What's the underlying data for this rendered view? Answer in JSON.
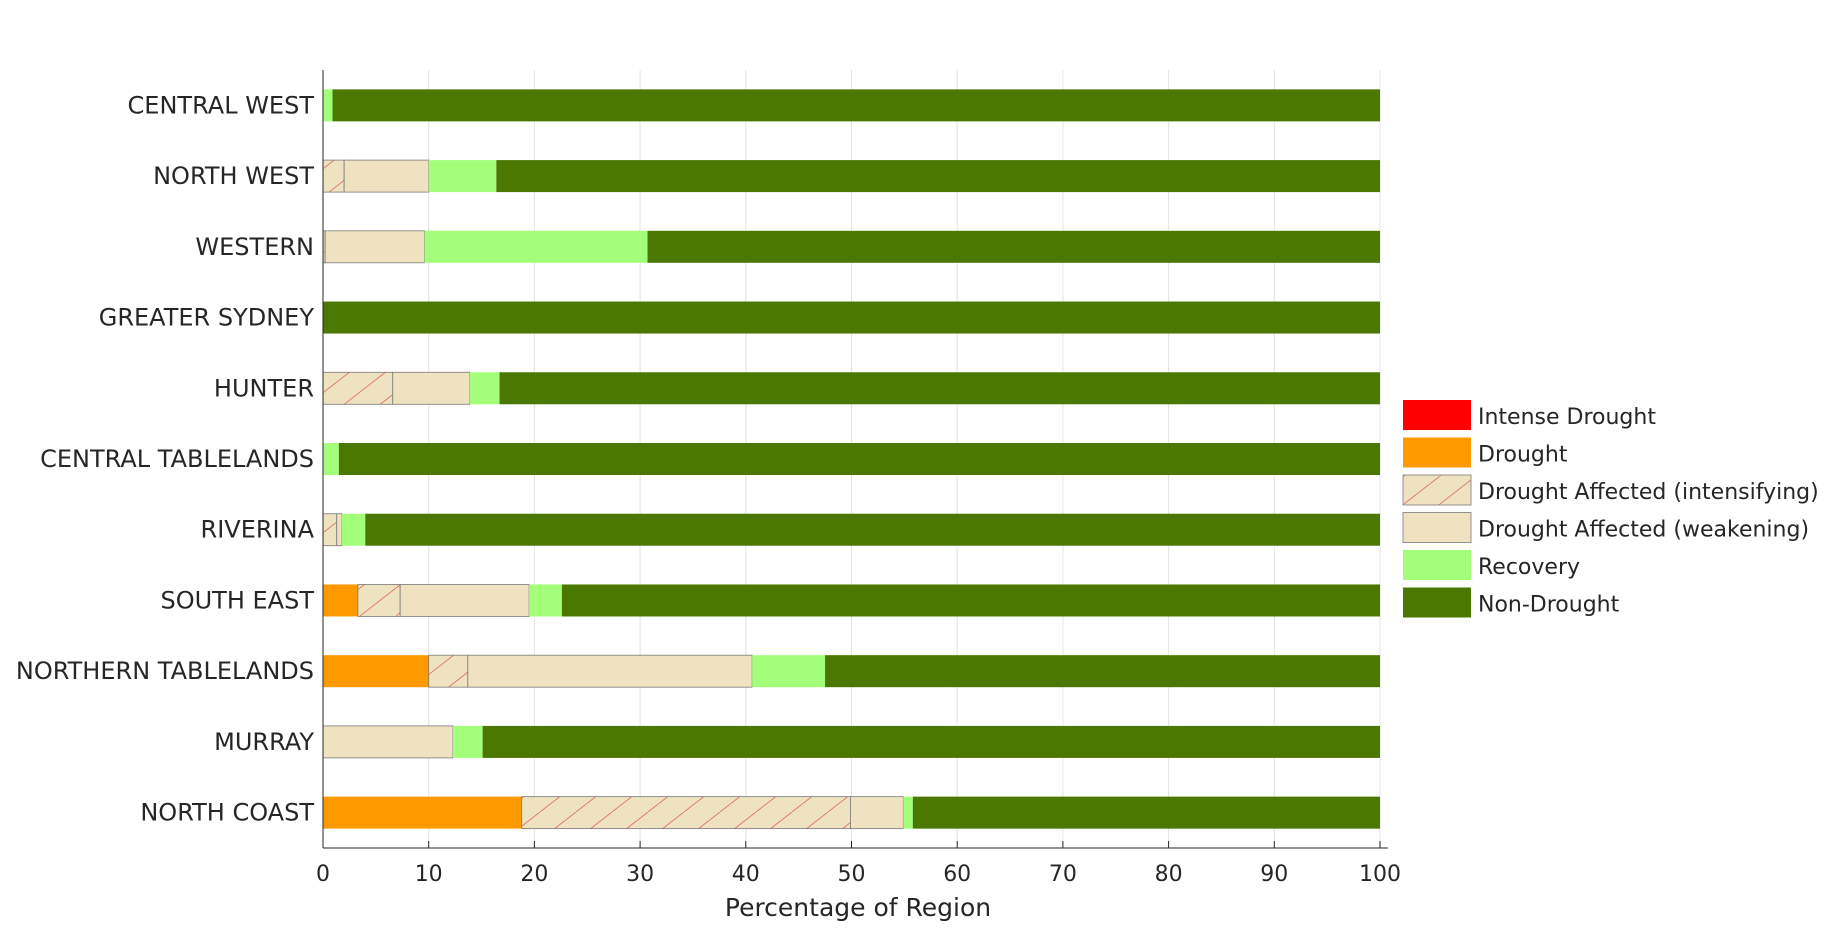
{
  "chart_data": {
    "type": "bar",
    "orientation": "horizontal",
    "stacked": true,
    "title": "",
    "xlabel": "Percentage of Region",
    "ylabel": "",
    "xlim": [
      0,
      100
    ],
    "xticks": [
      0,
      10,
      20,
      30,
      40,
      50,
      60,
      70,
      80,
      90,
      100
    ],
    "grid": true,
    "legend_position": "right",
    "categories": [
      "CENTRAL WEST",
      "NORTH WEST",
      "WESTERN",
      "GREATER SYDNEY",
      "HUNTER",
      "CENTRAL TABLELANDS",
      "RIVERINA",
      "SOUTH EAST",
      "NORTHERN TABLELANDS",
      "MURRAY",
      "NORTH COAST"
    ],
    "series": [
      {
        "name": "Intense Drought",
        "color": "#ff0000",
        "pattern": "solid",
        "values": [
          0,
          0,
          0,
          0,
          0,
          0,
          0,
          0,
          0,
          0,
          0
        ]
      },
      {
        "name": "Drought",
        "color": "#ff9900",
        "pattern": "solid",
        "values": [
          0,
          0,
          0,
          0,
          0,
          0,
          0,
          3.3,
          10,
          0,
          18.8
        ]
      },
      {
        "name": "Drought Affected (intensifying)",
        "color": "#eee2c0",
        "pattern": "hatch",
        "values": [
          0,
          2,
          0.2,
          0,
          6.6,
          0,
          1.3,
          4,
          3.7,
          0,
          31.1
        ]
      },
      {
        "name": "Drought Affected (weakening)",
        "color": "#eee2c0",
        "pattern": "solid",
        "values": [
          0,
          8,
          9.4,
          0,
          7.3,
          0,
          0.5,
          12.2,
          26.9,
          12.3,
          5
        ]
      },
      {
        "name": "Recovery",
        "color": "#a3ff7a",
        "pattern": "solid",
        "values": [
          0.9,
          6.4,
          21.1,
          0,
          2.8,
          1.5,
          2.2,
          3.1,
          6.9,
          2.8,
          0.9
        ]
      },
      {
        "name": "Non-Drought",
        "color": "#4a7800",
        "pattern": "solid",
        "values": [
          99.1,
          83.6,
          69.3,
          100,
          83.3,
          98.5,
          96,
          77.4,
          52.5,
          84.9,
          44.2
        ]
      }
    ]
  }
}
